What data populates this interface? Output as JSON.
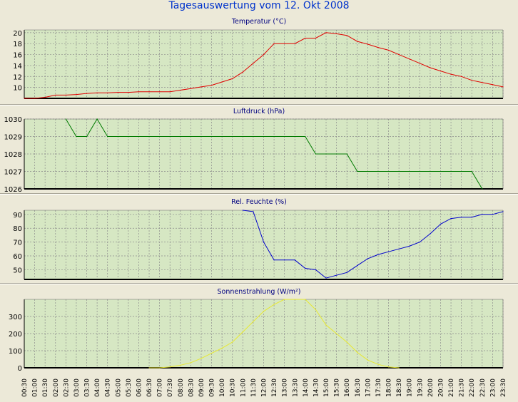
{
  "page_title": "Tagesauswertung vom 12. Okt 2008",
  "colors": {
    "title": "#0033CC",
    "panel_bg": "#ECE9D8",
    "plot_bg": "#D6E7C3",
    "grid": "#8C8C8C",
    "temperature": "#E00000",
    "pressure": "#007A00",
    "humidity": "#0000CC",
    "solar": "#E8E830"
  },
  "x_tick_labels": [
    "00:30",
    "01:00",
    "01:30",
    "02:00",
    "02:30",
    "03:00",
    "03:30",
    "04:00",
    "04:30",
    "05:00",
    "05:30",
    "06:00",
    "06:30",
    "07:00",
    "07:30",
    "08:00",
    "08:30",
    "09:00",
    "09:30",
    "10:00",
    "10:30",
    "11:00",
    "11:30",
    "12:00",
    "12:30",
    "13:00",
    "13:30",
    "14:00",
    "14:30",
    "15:00",
    "15:30",
    "16:00",
    "16:30",
    "17:00",
    "17:30",
    "18:00",
    "18:30",
    "19:00",
    "19:30",
    "20:00",
    "20:30",
    "21:00",
    "21:30",
    "22:00",
    "22:30",
    "23:00",
    "23:30"
  ],
  "chart_data": [
    {
      "type": "line",
      "title": "Temperatur (°C)",
      "xlabel": "",
      "ylabel": "",
      "ylim": [
        8,
        20.5
      ],
      "yticks": [
        10,
        12,
        14,
        16,
        18,
        20
      ],
      "grid": true,
      "x": [
        "00:30",
        "01:00",
        "01:30",
        "02:00",
        "02:30",
        "03:00",
        "03:30",
        "04:00",
        "04:30",
        "05:00",
        "05:30",
        "06:00",
        "06:30",
        "07:00",
        "07:30",
        "08:00",
        "08:30",
        "09:00",
        "09:30",
        "10:00",
        "10:30",
        "11:00",
        "11:30",
        "12:00",
        "12:30",
        "13:00",
        "13:30",
        "14:00",
        "14:30",
        "15:00",
        "15:30",
        "16:00",
        "16:30",
        "17:00",
        "17:30",
        "18:00",
        "18:30",
        "19:00",
        "19:30",
        "20:00",
        "20:30",
        "21:00",
        "21:30",
        "22:00",
        "22:30",
        "23:00",
        "23:30"
      ],
      "series": [
        {
          "color": "#E00000",
          "values": [
            8.0,
            8.0,
            8.2,
            8.6,
            8.6,
            8.7,
            8.9,
            9.0,
            9.0,
            9.1,
            9.1,
            9.2,
            9.2,
            9.2,
            9.2,
            9.5,
            9.8,
            10.1,
            10.4,
            11.0,
            11.6,
            12.8,
            14.4,
            16.0,
            18.0,
            18.0,
            18.0,
            19.0,
            19.0,
            20.0,
            19.8,
            19.5,
            18.4,
            17.9,
            17.3,
            16.8,
            16.0,
            15.2,
            14.4,
            13.6,
            13.0,
            12.4,
            12.0,
            11.3,
            10.9,
            10.5,
            10.1
          ]
        }
      ]
    },
    {
      "type": "line",
      "title": "Luftdruck (hPa)",
      "xlabel": "",
      "ylabel": "",
      "ylim": [
        1026,
        1030
      ],
      "yticks": [
        1026,
        1027,
        1028,
        1029,
        1030
      ],
      "grid": true,
      "x": [
        "02:30",
        "03:00",
        "03:30",
        "04:00",
        "04:30",
        "05:00",
        "05:30",
        "06:00",
        "06:30",
        "07:00",
        "07:30",
        "08:00",
        "08:30",
        "09:00",
        "09:30",
        "10:00",
        "10:30",
        "11:00",
        "11:30",
        "12:00",
        "12:30",
        "13:00",
        "13:30",
        "14:00",
        "14:30",
        "15:00",
        "15:30",
        "16:00",
        "16:30",
        "17:00",
        "17:30",
        "18:00",
        "18:30",
        "19:00",
        "19:30",
        "20:00",
        "20:30",
        "21:00",
        "21:30",
        "22:00",
        "22:30"
      ],
      "series": [
        {
          "color": "#007A00",
          "values": [
            1030,
            1029,
            1029,
            1030,
            1029,
            1029,
            1029,
            1029,
            1029,
            1029,
            1029,
            1029,
            1029,
            1029,
            1029,
            1029,
            1029,
            1029,
            1029,
            1029,
            1029,
            1029,
            1029,
            1029,
            1028,
            1028,
            1028,
            1028,
            1027,
            1027,
            1027,
            1027,
            1027,
            1027,
            1027,
            1027,
            1027,
            1027,
            1027,
            1027,
            1026
          ]
        }
      ]
    },
    {
      "type": "line",
      "title": "Rel. Feuchte (%)",
      "xlabel": "",
      "ylabel": "",
      "ylim": [
        43,
        93
      ],
      "yticks": [
        50,
        60,
        70,
        80,
        90
      ],
      "grid": true,
      "x": [
        "11:00",
        "11:30",
        "12:00",
        "12:30",
        "13:00",
        "13:30",
        "14:00",
        "14:30",
        "15:00",
        "15:30",
        "16:00",
        "16:30",
        "17:00",
        "17:30",
        "18:00",
        "18:30",
        "19:00",
        "19:30",
        "20:00",
        "20:30",
        "21:00",
        "21:30",
        "22:00",
        "22:30",
        "23:00",
        "23:30"
      ],
      "series": [
        {
          "color": "#0000CC",
          "values": [
            93,
            92,
            70,
            57,
            57,
            57,
            51,
            50,
            44,
            46,
            48,
            53,
            58,
            61,
            63,
            65,
            67,
            70,
            76,
            83,
            87,
            88,
            88,
            90,
            90,
            92
          ]
        }
      ]
    },
    {
      "type": "line",
      "title": "Sonnenstrahlung (W/m²)",
      "xlabel": "",
      "ylabel": "",
      "ylim": [
        0,
        400
      ],
      "yticks": [
        0,
        100,
        200,
        300
      ],
      "grid": true,
      "x": [
        "06:30",
        "07:00",
        "07:30",
        "08:00",
        "08:30",
        "09:00",
        "09:30",
        "10:00",
        "10:30",
        "11:00",
        "11:30",
        "12:00",
        "12:30",
        "13:00",
        "13:30",
        "14:00",
        "14:30",
        "15:00",
        "15:30",
        "16:00",
        "16:30",
        "17:00",
        "17:30",
        "18:00",
        "18:30"
      ],
      "series": [
        {
          "color": "#E8E830",
          "values": [
            0,
            0,
            5,
            15,
            30,
            55,
            85,
            115,
            150,
            210,
            270,
            330,
            370,
            400,
            400,
            400,
            340,
            250,
            200,
            150,
            90,
            45,
            20,
            5,
            0
          ]
        }
      ]
    }
  ]
}
